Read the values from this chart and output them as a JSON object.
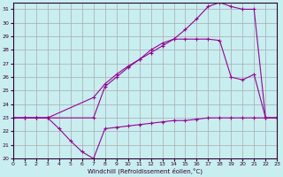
{
  "xlabel": "Windchill (Refroidissement éolien,°C)",
  "bg_color": "#c8eef0",
  "grid_color": "#aaaaaa",
  "line_color": "#990099",
  "xlim": [
    0,
    23
  ],
  "ylim": [
    20,
    31.5
  ],
  "xticks": [
    0,
    1,
    2,
    3,
    4,
    5,
    6,
    7,
    8,
    9,
    10,
    11,
    12,
    13,
    14,
    15,
    16,
    17,
    18,
    19,
    20,
    21,
    22,
    23
  ],
  "yticks": [
    20,
    21,
    22,
    23,
    24,
    25,
    26,
    27,
    28,
    29,
    30,
    31
  ],
  "series1_x": [
    0,
    1,
    2,
    3,
    4,
    5,
    6,
    7,
    8,
    9,
    10,
    11,
    12,
    13,
    14,
    15,
    16,
    17,
    18,
    19,
    20,
    21,
    22,
    23
  ],
  "series1_y": [
    23,
    23,
    23,
    23,
    22.2,
    21.3,
    20.5,
    20.0,
    22.2,
    22.3,
    22.4,
    22.5,
    22.6,
    22.7,
    22.8,
    22.8,
    22.9,
    23.0,
    23.0,
    23.0,
    23.0,
    23.0,
    23.0,
    23.0
  ],
  "series2_x": [
    0,
    1,
    2,
    3,
    7,
    8,
    9,
    10,
    11,
    12,
    13,
    14,
    15,
    16,
    17,
    18,
    19,
    20,
    21,
    22,
    23
  ],
  "series2_y": [
    23,
    23,
    23,
    23,
    23.0,
    25.3,
    26.0,
    26.7,
    27.3,
    27.8,
    28.3,
    28.8,
    29.5,
    30.3,
    31.2,
    31.5,
    31.2,
    31.0,
    31.0,
    23.0,
    23.0
  ],
  "series3_x": [
    0,
    1,
    2,
    3,
    7,
    8,
    9,
    10,
    11,
    12,
    13,
    14,
    15,
    16,
    17,
    18,
    19,
    20,
    21,
    22,
    23
  ],
  "series3_y": [
    23,
    23,
    23,
    23,
    24.5,
    25.5,
    26.2,
    26.8,
    27.3,
    28.0,
    28.5,
    28.8,
    28.8,
    28.8,
    28.8,
    28.7,
    26.0,
    25.8,
    26.2,
    23.0,
    23.0
  ]
}
